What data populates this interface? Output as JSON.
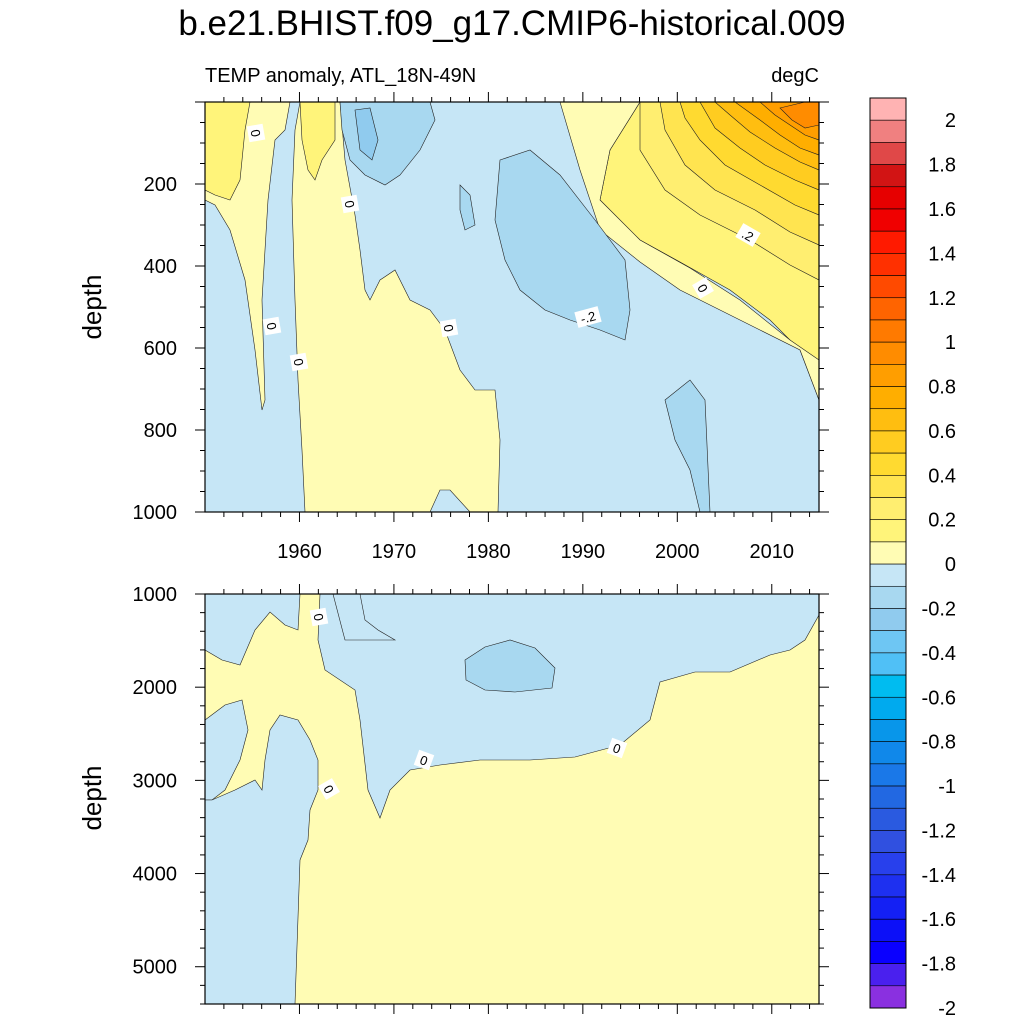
{
  "chart_data": [
    {
      "type": "contour",
      "panel": "upper",
      "title": "b.e21.BHIST.f09_g17.CMIP6-historical.009",
      "subtitle_left": "TEMP anomaly, ATL_18N-49N",
      "subtitle_right": "degC",
      "ylabel": "depth",
      "x_ticks": [
        1960,
        1970,
        1980,
        1990,
        2000,
        2010
      ],
      "x_range": [
        1950,
        2015
      ],
      "y_ticks": [
        200,
        400,
        600,
        800,
        1000
      ],
      "y_range": [
        0,
        1000
      ],
      "y_reversed": true,
      "contour_labels": [
        "0",
        "0",
        "0",
        "0",
        "0",
        "-.2",
        "0",
        ".2"
      ]
    },
    {
      "type": "contour",
      "panel": "lower",
      "ylabel": "depth",
      "x_range": [
        1950,
        2015
      ],
      "y_ticks": [
        1000,
        2000,
        3000,
        4000,
        5000
      ],
      "y_range": [
        1000,
        5400
      ],
      "y_reversed": true,
      "contour_labels": [
        "0",
        "0",
        "0",
        "0"
      ]
    }
  ],
  "colorbar": {
    "tick_labels": [
      "2",
      "1.8",
      "1.6",
      "1.4",
      "1.2",
      "1",
      "0.8",
      "0.6",
      "0.4",
      "0.2",
      "0",
      "-0.2",
      "-0.4",
      "-0.6",
      "-0.8",
      "-1",
      "-1.2",
      "-1.4",
      "-1.6",
      "-1.8",
      "-2"
    ],
    "colors": [
      "#ffb3b3",
      "#f08080",
      "#e04848",
      "#d21414",
      "#e60000",
      "#f00000",
      "#ff1a00",
      "#ff3000",
      "#ff4a00",
      "#ff6400",
      "#ff7a00",
      "#ff8c00",
      "#ff9e00",
      "#ffae00",
      "#ffbe10",
      "#ffcc20",
      "#ffda30",
      "#ffe450",
      "#ffee70",
      "#fff47a",
      "#fffcb4",
      "#c6e6f6",
      "#a8d8f0",
      "#90cbee",
      "#6ec6f3",
      "#50c0f6",
      "#00bcf0",
      "#00aaee",
      "#0896ea",
      "#1088ea",
      "#1a78e8",
      "#2268e2",
      "#2a5ae0",
      "#3050e0",
      "#2840ec",
      "#1e30f0",
      "#1420f4",
      "#0c10f8",
      "#0a00ff",
      "#4a20ee",
      "#8a30e0"
    ]
  },
  "colors": {
    "zero_pos": "#fffcb4",
    "neg1": "#c6e6f6",
    "neg2": "#a8d8f0",
    "neg3": "#90cbee",
    "pos1": "#fff47a",
    "pos2": "#ffee70",
    "pos3": "#ffe450",
    "pos4": "#ffda30",
    "pos5": "#ffcc20",
    "pos6": "#ffbe10",
    "pos7": "#ffae00",
    "pos8": "#ff9e00",
    "pos9": "#ff8c00"
  }
}
